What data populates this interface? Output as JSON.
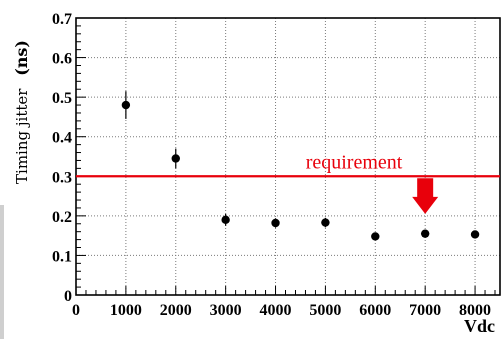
{
  "chart_data": {
    "type": "scatter",
    "xlabel": "Vdc",
    "ylabel": "Timing jitter",
    "ylabel_unit": "(ns)",
    "xlim": [
      0,
      8500
    ],
    "ylim": [
      0,
      0.7
    ],
    "x_ticks": [
      0,
      1000,
      2000,
      3000,
      4000,
      5000,
      6000,
      7000,
      8000
    ],
    "y_ticks": [
      0,
      0.1,
      0.2,
      0.3,
      0.4,
      0.5,
      0.6,
      0.7
    ],
    "x_tick_labels": [
      "0",
      "1000",
      "2000",
      "3000",
      "4000",
      "5000",
      "6000",
      "7000",
      "8000"
    ],
    "y_tick_labels": [
      "0",
      "0.1",
      "0.2",
      "0.3",
      "0.4",
      "0.5",
      "0.6",
      "0.7"
    ],
    "grid": true,
    "points": [
      {
        "x": 1000,
        "y": 0.48,
        "err": 0.035
      },
      {
        "x": 2000,
        "y": 0.345,
        "err": 0.025
      },
      {
        "x": 3000,
        "y": 0.19,
        "err": 0.015
      },
      {
        "x": 4000,
        "y": 0.182,
        "err": 0.012
      },
      {
        "x": 5000,
        "y": 0.183,
        "err": 0.012
      },
      {
        "x": 6000,
        "y": 0.148,
        "err": 0.01
      },
      {
        "x": 7000,
        "y": 0.155,
        "err": 0.01
      },
      {
        "x": 8000,
        "y": 0.153,
        "err": 0.01
      }
    ],
    "requirement_line": {
      "y": 0.3,
      "label": "requirement",
      "color": "#e8000b"
    },
    "arrow": {
      "x": 7000,
      "y_top": 0.3,
      "y_bottom": 0.2,
      "color": "#e8000b"
    }
  }
}
